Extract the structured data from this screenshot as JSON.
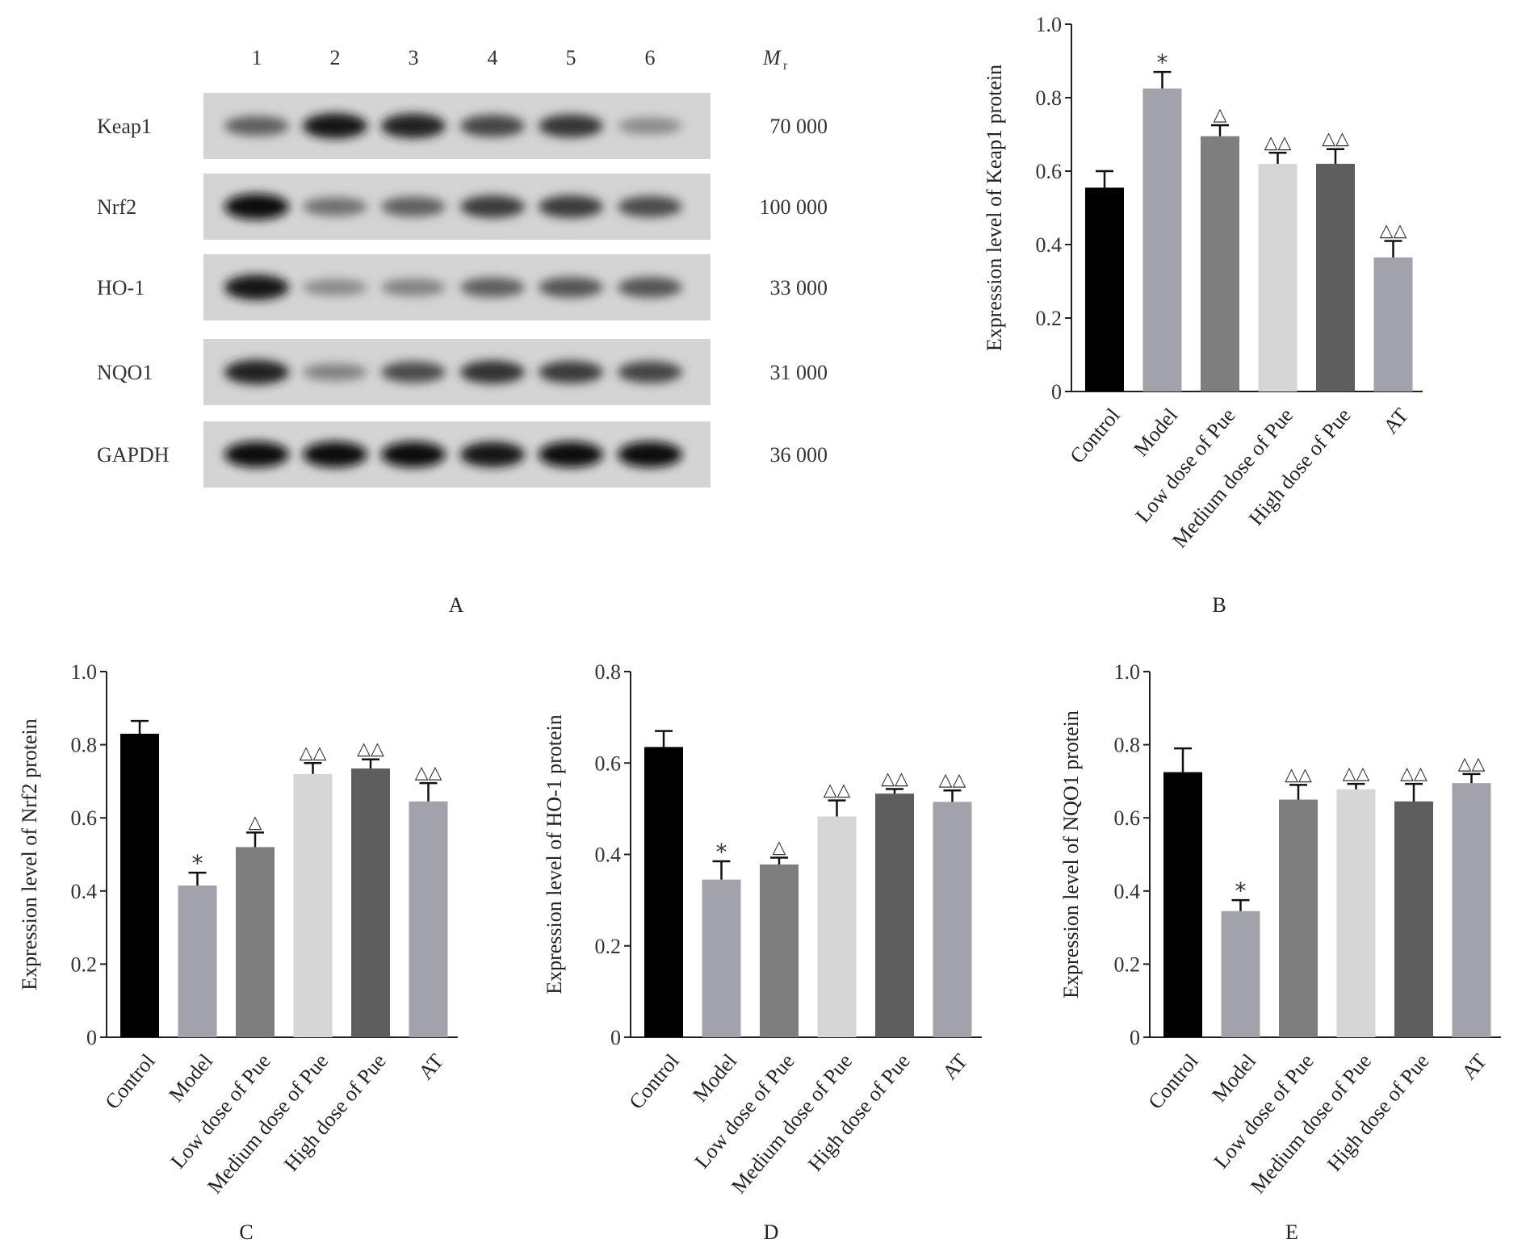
{
  "panel_labels": [
    "A",
    "B",
    "C",
    "D",
    "E"
  ],
  "blot": {
    "lane_labels": [
      "1",
      "2",
      "3",
      "4",
      "5",
      "6"
    ],
    "mr_label_main": "M",
    "mr_label_sub": "r",
    "rows": [
      {
        "protein": "Keap1",
        "mr": "70 000",
        "intensities": [
          0.55,
          0.95,
          0.9,
          0.7,
          0.78,
          0.3
        ]
      },
      {
        "protein": "Nrf2",
        "mr": "100 000",
        "intensities": [
          1.0,
          0.45,
          0.55,
          0.75,
          0.75,
          0.65
        ]
      },
      {
        "protein": "HO-1",
        "mr": "33 000",
        "intensities": [
          0.95,
          0.3,
          0.35,
          0.55,
          0.6,
          0.6
        ]
      },
      {
        "protein": "NQO1",
        "mr": "31 000",
        "intensities": [
          0.9,
          0.35,
          0.65,
          0.8,
          0.75,
          0.7
        ]
      },
      {
        "protein": "GAPDH",
        "mr": "36 000",
        "intensities": [
          1.0,
          1.0,
          1.0,
          0.95,
          1.0,
          1.0
        ]
      }
    ]
  },
  "chart_data": [
    {
      "type": "bar",
      "panel": "B",
      "categories": [
        "Control",
        "Model",
        "Low dose of Pue",
        "Medium dose of Pue",
        "High dose of Pue",
        "AT"
      ],
      "values": [
        0.555,
        0.825,
        0.695,
        0.62,
        0.62,
        0.365
      ],
      "errors": [
        0.045,
        0.045,
        0.03,
        0.03,
        0.04,
        0.045
      ],
      "annotations": [
        "",
        "*",
        "△",
        "△△",
        "△△",
        "△△"
      ],
      "ylabel": "Expression level of  Keap1 protein",
      "ylim": [
        0,
        1.0
      ],
      "yticks": [
        0,
        0.2,
        0.4,
        0.6,
        0.8,
        1.0
      ],
      "ytick_labels": [
        "0",
        "0.2",
        "0.4",
        "0.6",
        "0.8",
        "1.0"
      ],
      "colors": [
        "#000000",
        "#a2a2aa",
        "#7e7e7e",
        "#d6d6d6",
        "#5e5e5e",
        "#a2a2aa"
      ]
    },
    {
      "type": "bar",
      "panel": "C",
      "categories": [
        "Control",
        "Model",
        "Low dose of Pue",
        "Medium dose of Pue",
        "High dose of Pue",
        "AT"
      ],
      "values": [
        0.83,
        0.415,
        0.52,
        0.72,
        0.735,
        0.645
      ],
      "errors": [
        0.035,
        0.035,
        0.04,
        0.03,
        0.025,
        0.05
      ],
      "annotations": [
        "",
        "*",
        "△",
        "△△",
        "△△",
        "△△"
      ],
      "ylabel": "Expression level of  Nrf2 protein",
      "ylim": [
        0,
        1.0
      ],
      "yticks": [
        0,
        0.2,
        0.4,
        0.6,
        0.8,
        1.0
      ],
      "ytick_labels": [
        "0",
        "0.2",
        "0.4",
        "0.6",
        "0.8",
        "1.0"
      ],
      "colors": [
        "#000000",
        "#a2a2aa",
        "#7e7e7e",
        "#d6d6d6",
        "#5e5e5e",
        "#a2a2aa"
      ]
    },
    {
      "type": "bar",
      "panel": "D",
      "categories": [
        "Control",
        "Model",
        "Low dose of Pue",
        "Medium dose of Pue",
        "High dose of Pue",
        "AT"
      ],
      "values": [
        0.635,
        0.345,
        0.378,
        0.483,
        0.533,
        0.515
      ],
      "errors": [
        0.035,
        0.04,
        0.015,
        0.035,
        0.01,
        0.025
      ],
      "annotations": [
        "",
        "*",
        "△",
        "△△",
        "△△",
        "△△"
      ],
      "ylabel": "Expression level of  HO-1 protein",
      "ylim": [
        0,
        0.8
      ],
      "yticks": [
        0,
        0.2,
        0.4,
        0.6,
        0.8
      ],
      "ytick_labels": [
        "0",
        "0.2",
        "0.4",
        "0.6",
        "0.8"
      ],
      "colors": [
        "#000000",
        "#a2a2aa",
        "#7e7e7e",
        "#d6d6d6",
        "#5e5e5e",
        "#a2a2aa"
      ]
    },
    {
      "type": "bar",
      "panel": "E",
      "categories": [
        "Control",
        "Model",
        "Low dose of Pue",
        "Medium dose of Pue",
        "High dose of Pue",
        "AT"
      ],
      "values": [
        0.725,
        0.345,
        0.65,
        0.678,
        0.645,
        0.695
      ],
      "errors": [
        0.065,
        0.03,
        0.04,
        0.015,
        0.048,
        0.025
      ],
      "annotations": [
        "",
        "*",
        "△△",
        "△△",
        "△△",
        "△△"
      ],
      "ylabel": "Expression level of  NQO1 protein",
      "ylim": [
        0,
        1.0
      ],
      "yticks": [
        0,
        0.2,
        0.4,
        0.6,
        0.8,
        1.0
      ],
      "ytick_labels": [
        "0",
        "0.2",
        "0.4",
        "0.6",
        "0.8",
        "1.0"
      ],
      "colors": [
        "#000000",
        "#a2a2aa",
        "#7e7e7e",
        "#d6d6d6",
        "#5e5e5e",
        "#a2a2aa"
      ]
    }
  ]
}
